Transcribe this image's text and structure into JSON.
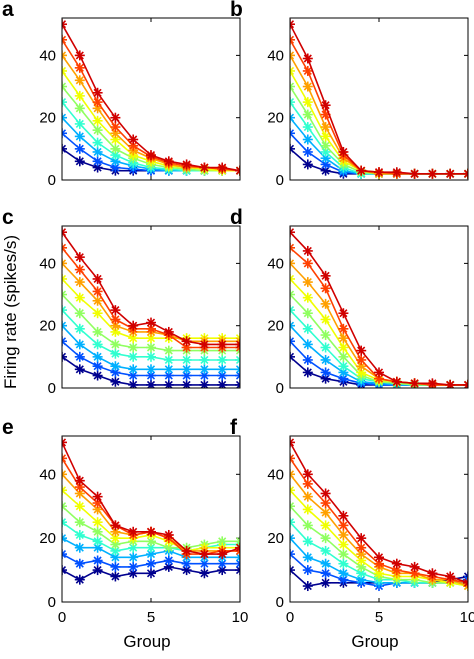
{
  "ylabel": "Firing rate (spikes/s)",
  "xlabel": "Group",
  "x_ticks": [
    "0",
    "5",
    "10"
  ],
  "y_ticks": [
    "0",
    "20",
    "40"
  ],
  "marker": "*",
  "series_colors": [
    "#00008f",
    "#0050ff",
    "#00b0ff",
    "#30ffd0",
    "#90ff60",
    "#f0ff00",
    "#ffa000",
    "#ff4000",
    "#d00000"
  ],
  "chart_data": [
    {
      "type": "line",
      "panel": "a",
      "xlim": [
        0,
        10
      ],
      "ylim": [
        0,
        52
      ],
      "x": [
        0,
        1,
        2,
        3,
        4,
        5,
        6,
        7,
        8,
        9,
        10
      ],
      "series": [
        {
          "values": [
            10,
            6,
            4,
            3,
            3,
            3,
            3,
            3,
            3,
            3,
            3
          ]
        },
        {
          "values": [
            15,
            10,
            6,
            4,
            3.5,
            3,
            3,
            3,
            3,
            3,
            3
          ]
        },
        {
          "values": [
            20,
            14,
            9,
            6,
            4.5,
            3.5,
            3,
            3,
            3,
            3,
            3
          ]
        },
        {
          "values": [
            25,
            18,
            12,
            8,
            5.5,
            4,
            3.5,
            3,
            3,
            3,
            3
          ]
        },
        {
          "values": [
            30,
            23,
            16,
            10,
            7,
            5,
            4,
            3.5,
            3,
            3,
            3
          ]
        },
        {
          "values": [
            35,
            27,
            19,
            13,
            8,
            6,
            4.5,
            4,
            3.5,
            3,
            3
          ]
        },
        {
          "values": [
            40,
            32,
            23,
            15,
            9.5,
            7,
            5,
            4,
            4,
            3.5,
            3
          ]
        },
        {
          "values": [
            45,
            36,
            25,
            17,
            11,
            7.5,
            5.5,
            4.5,
            4,
            3.5,
            3
          ]
        },
        {
          "values": [
            50,
            40,
            28,
            20,
            13,
            8,
            6,
            5,
            4,
            4,
            3
          ]
        }
      ]
    },
    {
      "type": "line",
      "panel": "b",
      "xlim": [
        0,
        10
      ],
      "ylim": [
        0,
        52
      ],
      "x": [
        0,
        1,
        2,
        3,
        4,
        5,
        6,
        7,
        8,
        9,
        10
      ],
      "series": [
        {
          "values": [
            10,
            5,
            3,
            2,
            2,
            2,
            2,
            2,
            2,
            2,
            2
          ]
        },
        {
          "values": [
            15,
            9,
            5,
            2.5,
            2,
            2,
            2,
            2,
            2,
            2,
            2
          ]
        },
        {
          "values": [
            20,
            13,
            7,
            3,
            2,
            2,
            2,
            2,
            2,
            2,
            2
          ]
        },
        {
          "values": [
            25,
            17,
            9,
            4,
            2,
            2,
            2,
            2,
            2,
            2,
            2
          ]
        },
        {
          "values": [
            30,
            21,
            11,
            5,
            2.5,
            2,
            2,
            2,
            2,
            2,
            2
          ]
        },
        {
          "values": [
            35,
            25,
            14,
            6,
            3,
            2,
            2,
            2,
            2,
            2,
            2
          ]
        },
        {
          "values": [
            40,
            30,
            17,
            7,
            3,
            2,
            2,
            2,
            2,
            2,
            2
          ]
        },
        {
          "values": [
            45,
            35,
            21,
            8,
            3,
            2.5,
            2,
            2,
            2,
            2,
            2
          ]
        },
        {
          "values": [
            50,
            39,
            24,
            9,
            3,
            2.5,
            2.5,
            2,
            2,
            2,
            2
          ]
        }
      ]
    },
    {
      "type": "line",
      "panel": "c",
      "xlim": [
        0,
        10
      ],
      "ylim": [
        0,
        52
      ],
      "x": [
        0,
        1,
        2,
        3,
        4,
        5,
        6,
        7,
        8,
        9,
        10
      ],
      "series": [
        {
          "values": [
            10,
            6,
            4,
            2,
            1,
            1,
            1,
            1,
            1,
            1,
            1
          ]
        },
        {
          "values": [
            15,
            10,
            7,
            5,
            4,
            4,
            4,
            4,
            4,
            4,
            4
          ]
        },
        {
          "values": [
            20,
            14,
            10,
            7,
            6,
            6,
            6,
            6,
            6,
            6,
            6
          ]
        },
        {
          "values": [
            25,
            19,
            14,
            11,
            10,
            10,
            9,
            9,
            9,
            9,
            9
          ]
        },
        {
          "values": [
            30,
            24,
            18,
            14,
            13,
            13,
            12,
            12,
            12,
            12,
            12
          ]
        },
        {
          "values": [
            35,
            29,
            24,
            18,
            16,
            16,
            16,
            16,
            16,
            16,
            16
          ]
        },
        {
          "values": [
            40,
            34,
            28,
            20,
            18,
            18,
            17,
            15,
            15,
            15,
            15
          ]
        },
        {
          "values": [
            45,
            38,
            31,
            22,
            19,
            19,
            17,
            13,
            13,
            13,
            13
          ]
        },
        {
          "values": [
            50,
            42,
            35,
            25,
            20,
            21,
            18,
            15,
            14,
            14,
            14
          ]
        }
      ]
    },
    {
      "type": "line",
      "panel": "d",
      "xlim": [
        0,
        10
      ],
      "ylim": [
        0,
        52
      ],
      "x": [
        0,
        1,
        2,
        3,
        4,
        5,
        6,
        7,
        8,
        9,
        10
      ],
      "series": [
        {
          "values": [
            10,
            5,
            3,
            2,
            1,
            1,
            1,
            1,
            1,
            1,
            1
          ]
        },
        {
          "values": [
            15,
            9,
            5,
            3,
            1.5,
            1,
            1,
            1,
            1,
            1,
            1
          ]
        },
        {
          "values": [
            20,
            14,
            9,
            5,
            2,
            1.5,
            1,
            1,
            1,
            1,
            1
          ]
        },
        {
          "values": [
            25,
            19,
            13,
            7,
            3,
            2,
            1.5,
            1,
            1,
            1,
            1
          ]
        },
        {
          "values": [
            30,
            24,
            17,
            10,
            4,
            2,
            1.5,
            1,
            1,
            1,
            1
          ]
        },
        {
          "values": [
            35,
            29,
            22,
            13,
            5,
            2.5,
            2,
            1.5,
            1,
            1,
            1
          ]
        },
        {
          "values": [
            40,
            34,
            27,
            16,
            7,
            3,
            2,
            1.5,
            1,
            1,
            1
          ]
        },
        {
          "values": [
            45,
            40,
            32,
            19,
            9,
            3,
            2,
            1.5,
            1,
            1,
            1
          ]
        },
        {
          "values": [
            50,
            44,
            36,
            24,
            12,
            5,
            2,
            1.5,
            1.5,
            1,
            1
          ]
        }
      ]
    },
    {
      "type": "line",
      "panel": "e",
      "xlim": [
        0,
        10
      ],
      "ylim": [
        0,
        52
      ],
      "x": [
        0,
        1,
        2,
        3,
        4,
        5,
        6,
        7,
        8,
        9,
        10
      ],
      "series": [
        {
          "values": [
            10,
            7,
            10,
            8,
            9,
            9,
            11,
            10,
            9,
            10,
            10
          ]
        },
        {
          "values": [
            15,
            12,
            13,
            11,
            11,
            12,
            13,
            12,
            12,
            12,
            12
          ]
        },
        {
          "values": [
            20,
            17,
            17,
            14,
            14,
            15,
            16,
            14,
            14,
            14,
            14
          ]
        },
        {
          "values": [
            25,
            21,
            19,
            16,
            17,
            17,
            17,
            16,
            17,
            18,
            18
          ]
        },
        {
          "values": [
            30,
            25,
            22,
            18,
            19,
            19,
            17,
            17,
            18,
            19,
            19
          ]
        },
        {
          "values": [
            35,
            30,
            25,
            20,
            20,
            21,
            19,
            16,
            17,
            17,
            17
          ]
        },
        {
          "values": [
            40,
            34,
            29,
            22,
            21,
            22,
            20,
            16,
            16,
            16,
            16
          ]
        },
        {
          "values": [
            45,
            36,
            31,
            24,
            21,
            22,
            20,
            15,
            15,
            16,
            16
          ]
        },
        {
          "values": [
            50,
            38,
            33,
            24,
            22,
            22,
            21,
            16,
            15,
            15,
            17
          ]
        }
      ]
    },
    {
      "type": "line",
      "panel": "f",
      "xlim": [
        0,
        10
      ],
      "ylim": [
        0,
        52
      ],
      "x": [
        0,
        1,
        2,
        3,
        4,
        5,
        6,
        7,
        8,
        9,
        10
      ],
      "series": [
        {
          "values": [
            10,
            5,
            6,
            6,
            6,
            6,
            6,
            6,
            6,
            7,
            8
          ]
        },
        {
          "values": [
            15,
            10,
            9,
            7,
            6,
            5,
            6,
            6,
            6,
            6,
            7
          ]
        },
        {
          "values": [
            20,
            14,
            12,
            9,
            7,
            6,
            6,
            6,
            6,
            6,
            6
          ]
        },
        {
          "values": [
            25,
            19,
            16,
            12,
            9,
            7,
            7,
            6,
            6,
            6,
            6
          ]
        },
        {
          "values": [
            30,
            24,
            20,
            15,
            11,
            8,
            7,
            7,
            6,
            6,
            5
          ]
        },
        {
          "values": [
            35,
            29,
            24,
            18,
            13,
            9,
            8,
            8,
            7,
            6,
            5
          ]
        },
        {
          "values": [
            40,
            33,
            28,
            21,
            15,
            11,
            9,
            9,
            7,
            7,
            5
          ]
        },
        {
          "values": [
            45,
            37,
            31,
            24,
            17,
            12,
            10,
            9,
            8,
            7,
            6
          ]
        },
        {
          "values": [
            50,
            40,
            34,
            27,
            20,
            14,
            12,
            11,
            9,
            8,
            6
          ]
        }
      ]
    }
  ]
}
